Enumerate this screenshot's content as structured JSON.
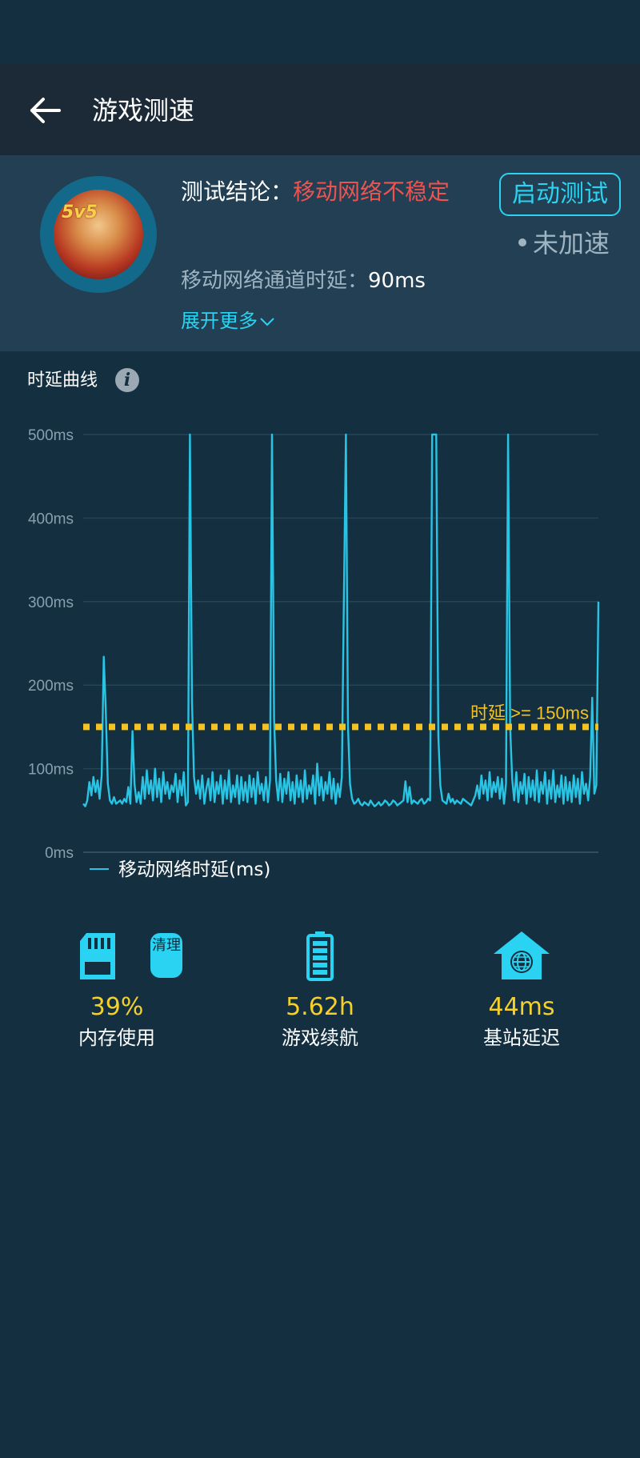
{
  "header": {
    "title": "游戏测速"
  },
  "summary": {
    "conclusion_label": "测试结论：",
    "conclusion_value": "移动网络不稳定",
    "start_button": "启动测试",
    "accel_status": "未加速",
    "latency_label": "移动网络通道时延：",
    "latency_value": "90ms",
    "expand_link": "展开更多",
    "avatar_badge": "5v5"
  },
  "chart": {
    "title": "时延曲线",
    "threshold_label": "时延 >= 150ms",
    "legend": "移动网络时延(ms)"
  },
  "chart_data": {
    "type": "line",
    "title": "时延曲线",
    "xlabel": "",
    "ylabel": "",
    "ylim": [
      0,
      500
    ],
    "y_ticks": [
      "0ms",
      "100ms",
      "200ms",
      "300ms",
      "400ms",
      "500ms"
    ],
    "grid": true,
    "legend_position": "bottom-left",
    "threshold": {
      "value": 150,
      "label": "时延 >= 150ms",
      "color": "#f6c21c"
    },
    "series": [
      {
        "name": "移动网络时延(ms)",
        "color": "#29c4e3",
        "values": [
          58,
          55,
          62,
          84,
          68,
          90,
          72,
          86,
          64,
          92,
          234,
          170,
          82,
          62,
          58,
          66,
          58,
          60,
          62,
          58,
          64,
          60,
          78,
          58,
          145,
          82,
          60,
          72,
          58,
          90,
          64,
          98,
          70,
          86,
          62,
          100,
          66,
          88,
          60,
          96,
          70,
          84,
          64,
          80,
          72,
          94,
          60,
          86,
          68,
          96,
          56,
          60,
          500,
          180,
          90,
          70,
          86,
          64,
          92,
          58,
          76,
          88,
          62,
          96,
          60,
          84,
          70,
          92,
          58,
          86,
          64,
          98,
          60,
          80,
          66,
          92,
          58,
          90,
          62,
          84,
          60,
          92,
          66,
          88,
          58,
          96,
          70,
          82,
          62,
          90,
          60,
          86,
          500,
          160,
          86,
          62,
          94,
          60,
          88,
          70,
          96,
          62,
          84,
          58,
          92,
          66,
          86,
          60,
          98,
          64,
          80,
          70,
          92,
          58,
          106,
          68,
          90,
          62,
          84,
          70,
          96,
          64,
          88,
          58,
          82,
          66,
          90,
          300,
          500,
          150,
          82,
          64,
          58,
          60,
          64,
          58,
          56,
          60,
          58,
          56,
          62,
          58,
          55,
          57,
          60,
          56,
          58,
          62,
          60,
          56,
          58,
          62,
          60,
          56,
          58,
          60,
          62,
          85,
          60,
          78,
          58,
          62,
          60,
          58,
          62,
          64,
          58,
          60,
          64,
          62,
          500,
          500,
          500,
          140,
          80,
          62,
          60,
          58,
          70,
          60,
          64,
          58,
          62,
          60,
          58,
          64,
          62,
          60,
          58,
          56,
          62,
          68,
          80,
          64,
          92,
          70,
          86,
          62,
          96,
          66,
          84,
          72,
          90,
          64,
          88,
          58,
          82,
          500,
          150,
          88,
          62,
          96,
          60,
          84,
          70,
          94,
          58,
          90,
          66,
          86,
          62,
          98,
          60,
          84,
          70,
          96,
          58,
          86,
          64,
          98,
          60,
          80,
          66,
          92,
          58,
          90,
          62,
          84,
          60,
          92,
          66,
          88,
          58,
          96,
          70,
          82,
          62,
          90,
          185,
          70,
          80,
          300
        ]
      }
    ]
  },
  "stats": [
    {
      "value": "39%",
      "label": "内存使用",
      "icon": "sd-card-icon",
      "action": "清理"
    },
    {
      "value": "5.62h",
      "label": "游戏续航",
      "icon": "battery-icon"
    },
    {
      "value": "44ms",
      "label": "基站延迟",
      "icon": "home-globe-icon"
    }
  ],
  "colors": {
    "accent": "#2ad3f2",
    "warning": "#ef5350",
    "value": "#f6d02a",
    "threshold": "#f6c21c",
    "background": "#132f40"
  }
}
